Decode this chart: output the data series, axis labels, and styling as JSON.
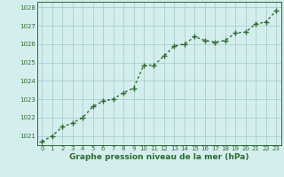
{
  "x": [
    0,
    1,
    2,
    3,
    4,
    5,
    6,
    7,
    8,
    9,
    10,
    11,
    12,
    13,
    14,
    15,
    16,
    17,
    18,
    19,
    20,
    21,
    22,
    23
  ],
  "y": [
    1020.7,
    1021.0,
    1021.5,
    1021.7,
    1022.0,
    1022.6,
    1022.9,
    1023.0,
    1023.35,
    1023.6,
    1024.85,
    1024.85,
    1025.35,
    1025.9,
    1026.0,
    1026.4,
    1026.2,
    1026.1,
    1026.2,
    1026.6,
    1026.65,
    1027.1,
    1027.2,
    1027.8
  ],
  "line_color": "#2d6a2d",
  "marker_color": "#2d6a2d",
  "bg_color": "#d4eeee",
  "grid_color": "#a0c8c8",
  "axis_color": "#2d6a2d",
  "label_color": "#2d6a2d",
  "xlabel": "Graphe pression niveau de la mer (hPa)",
  "ylim": [
    1020.5,
    1028.3
  ],
  "yticks": [
    1021,
    1022,
    1023,
    1024,
    1025,
    1026,
    1027,
    1028
  ],
  "xticks": [
    0,
    1,
    2,
    3,
    4,
    5,
    6,
    7,
    8,
    9,
    10,
    11,
    12,
    13,
    14,
    15,
    16,
    17,
    18,
    19,
    20,
    21,
    22,
    23
  ],
  "marker_size": 4.0,
  "line_width": 1.0
}
